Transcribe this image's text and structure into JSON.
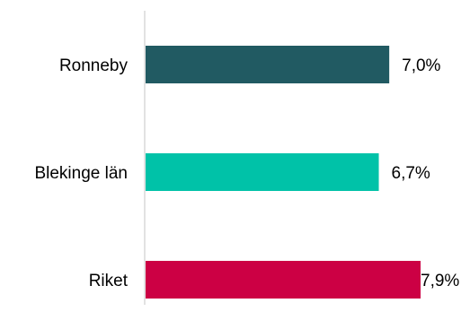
{
  "chart_data": {
    "type": "bar",
    "orientation": "horizontal",
    "categories": [
      "Ronneby",
      "Blekinge län",
      "Riket"
    ],
    "values": [
      7.0,
      6.7,
      7.9
    ],
    "value_labels": [
      "7,0%",
      "6,7%",
      "7,9%"
    ],
    "colors": [
      "#215a62",
      "#00c2a8",
      "#cc0044"
    ],
    "axis_color": "#d9d9d9",
    "xlim": [
      0,
      7.9
    ],
    "title": "",
    "xlabel": "",
    "ylabel": "",
    "grid": false,
    "legend": "none"
  }
}
